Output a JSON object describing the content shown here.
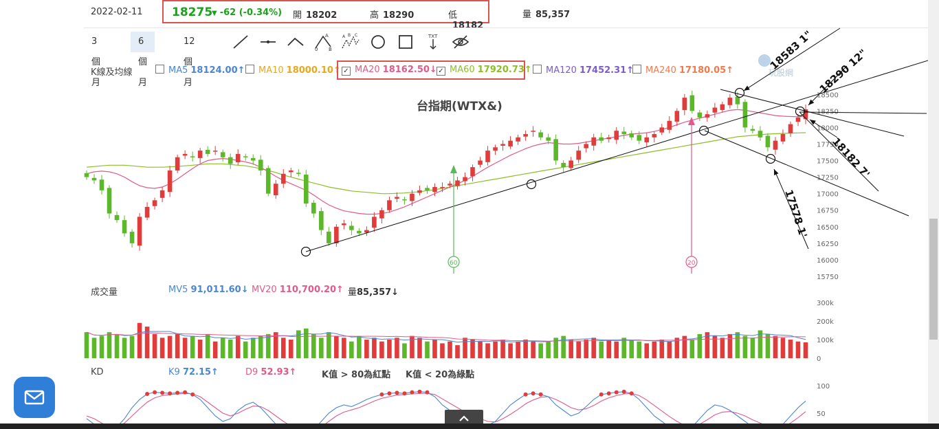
{
  "quote": {
    "date": "2022-02-11",
    "price": "18275",
    "change": "-62 (-0.34%)",
    "open_label": "開",
    "open": "18202",
    "high_label": "高",
    "high": "18290",
    "low_label": "低",
    "low": "18182",
    "volume_label": "量",
    "volume": "85,357"
  },
  "toolbar": {
    "periods": [
      "3 個月",
      "6 個月",
      "12 個月"
    ],
    "active_period": "6 個月",
    "tools": [
      "line-tool-icon",
      "horizontal-line-tool-icon",
      "angle-tool-icon",
      "abc-wave-tool-icon",
      "abcde-wave-tool-icon",
      "circle-tool-icon",
      "rectangle-tool-icon",
      "text-tool-icon",
      "hide-drawings-icon"
    ],
    "text_tool_label": "TXT"
  },
  "ma_legend": {
    "label": "K線及均線",
    "items": [
      {
        "name": "MA5",
        "value": "18124.00↑",
        "color": "#4a86d4",
        "checked": false
      },
      {
        "name": "MA10",
        "value": "18000.10↑",
        "color": "#e8a81c",
        "checked": false
      },
      {
        "name": "MA20",
        "value": "18162.50↓",
        "color": "#e05a8a",
        "checked": true
      },
      {
        "name": "MA60",
        "value": "17920.73↑",
        "color": "#8cbf26",
        "checked": true
      },
      {
        "name": "MA120",
        "value": "17452.31↑",
        "color": "#7b5cc9",
        "checked": false
      },
      {
        "name": "MA240",
        "value": "17180.05↑",
        "color": "#f07a4a",
        "checked": false
      }
    ]
  },
  "colors": {
    "up": "#e03c3c",
    "down": "#5cb82a",
    "ma20": "#e05a8a",
    "ma60": "#8cbf26",
    "accent": "#2f7fd8"
  },
  "watermark": "玩股網",
  "chart_data": [
    {
      "type": "candlestick",
      "title": "台指期(WTX&)",
      "yticks": [
        18500,
        18250,
        18000,
        17750,
        17500,
        17250,
        17000,
        16750,
        16500,
        16250,
        16000,
        15750
      ],
      "ylim": [
        15750,
        18700
      ],
      "closes": [
        17250,
        17200,
        17050,
        16700,
        16600,
        16400,
        16250,
        16650,
        16800,
        16900,
        17050,
        17350,
        17550,
        17600,
        17550,
        17650,
        17600,
        17650,
        17550,
        17450,
        17600,
        17550,
        17500,
        17350,
        17000,
        17150,
        17300,
        17350,
        17300,
        16850,
        16700,
        16450,
        16250,
        16500,
        16550,
        16450,
        16400,
        16450,
        16650,
        16750,
        16900,
        16950,
        16900,
        17000,
        17050,
        17050,
        17100,
        17100,
        17150,
        17200,
        17250,
        17400,
        17500,
        17650,
        17700,
        17750,
        17800,
        17850,
        17900,
        17950,
        17850,
        17800,
        17500,
        17400,
        17500,
        17650,
        17750,
        17850,
        17800,
        17850,
        17950,
        17900,
        17850,
        17800,
        17850,
        17900,
        18000,
        18100,
        18250,
        18450,
        18250,
        18150,
        18200,
        18300,
        18350,
        18450,
        18350,
        18000,
        17950,
        17850,
        17700,
        17800,
        17900,
        18050,
        18150,
        18275
      ],
      "ma20": [
        17300,
        17330,
        17340,
        17330,
        17300,
        17250,
        17180,
        17120,
        17090,
        17080,
        17100,
        17150,
        17220,
        17300,
        17380,
        17450,
        17500,
        17520,
        17530,
        17520,
        17500,
        17480,
        17450,
        17400,
        17330,
        17260,
        17200,
        17150,
        17100,
        17050,
        16980,
        16900,
        16830,
        16780,
        16740,
        16720,
        16700,
        16690,
        16690,
        16700,
        16720,
        16760,
        16800,
        16850,
        16900,
        16950,
        17000,
        17050,
        17100,
        17150,
        17200,
        17260,
        17330,
        17400,
        17460,
        17520,
        17580,
        17630,
        17680,
        17720,
        17750,
        17770,
        17760,
        17750,
        17750,
        17760,
        17780,
        17800,
        17820,
        17840,
        17860,
        17880,
        17900,
        17910,
        17920,
        17940,
        17970,
        18000,
        18040,
        18080,
        18110,
        18140,
        18170,
        18200,
        18230,
        18260,
        18270,
        18260,
        18240,
        18220,
        18200,
        18180,
        18170,
        18165,
        18162,
        18162.5
      ],
      "ma60": [
        17400,
        17410,
        17420,
        17430,
        17430,
        17430,
        17420,
        17410,
        17400,
        17400,
        17400,
        17405,
        17410,
        17420,
        17430,
        17440,
        17450,
        17450,
        17450,
        17440,
        17430,
        17420,
        17400,
        17380,
        17350,
        17320,
        17280,
        17250,
        17220,
        17190,
        17160,
        17130,
        17100,
        17080,
        17060,
        17040,
        17030,
        17020,
        17010,
        17000,
        17000,
        17005,
        17010,
        17020,
        17030,
        17045,
        17060,
        17080,
        17100,
        17120,
        17140,
        17160,
        17180,
        17200,
        17220,
        17240,
        17260,
        17280,
        17300,
        17320,
        17340,
        17360,
        17380,
        17400,
        17420,
        17440,
        17460,
        17480,
        17500,
        17520,
        17540,
        17560,
        17580,
        17600,
        17620,
        17640,
        17660,
        17680,
        17700,
        17720,
        17740,
        17760,
        17780,
        17800,
        17820,
        17840,
        17860,
        17870,
        17880,
        17890,
        17900,
        17905,
        17910,
        17915,
        17918,
        17920.73
      ],
      "annotations": [
        "18583 1\"",
        "18290 12\"",
        "18182 7'",
        "17578 1'"
      ],
      "markers": [
        {
          "label": "60"
        },
        {
          "label": "20"
        }
      ]
    },
    {
      "type": "bar",
      "title": "成交量",
      "yticks": [
        "300k",
        "200k",
        "100k",
        "0"
      ],
      "ylim": [
        0,
        300000
      ],
      "mv5_label": "MV5",
      "mv5": "91,011.60↓",
      "mv20_label": "MV20",
      "mv20": "110,700.20↑",
      "vol_label": "量",
      "vol": "85,357↓",
      "values": [
        140000,
        110000,
        120000,
        140000,
        130000,
        110000,
        120000,
        190000,
        170000,
        130000,
        110000,
        120000,
        130000,
        110000,
        120000,
        100000,
        130000,
        90000,
        110000,
        100000,
        120000,
        90000,
        110000,
        120000,
        130000,
        140000,
        110000,
        100000,
        150000,
        160000,
        130000,
        110000,
        140000,
        120000,
        110000,
        90000,
        120000,
        100000,
        110000,
        90000,
        100000,
        110000,
        80000,
        120000,
        110000,
        90000,
        100000,
        80000,
        90000,
        70000,
        110000,
        100000,
        90000,
        80000,
        90000,
        100000,
        80000,
        90000,
        100000,
        90000,
        80000,
        90000,
        110000,
        120000,
        100000,
        90000,
        100000,
        110000,
        90000,
        100000,
        90000,
        110000,
        100000,
        90000,
        80000,
        90000,
        100000,
        90000,
        110000,
        120000,
        100000,
        130000,
        140000,
        120000,
        110000,
        130000,
        140000,
        120000,
        110000,
        150000,
        130000,
        120000,
        110000,
        100000,
        90000,
        85357
      ]
    },
    {
      "type": "line",
      "title": "KD",
      "yticks": [
        100,
        50
      ],
      "ylim": [
        0,
        100
      ],
      "k_label": "K9",
      "k_value": "72.15↑",
      "d_label": "D9",
      "d_value": "52.93↑",
      "note_red": "K值 > 80為紅點",
      "note_green": "K值 < 20為綠點",
      "k": [
        40,
        30,
        20,
        15,
        25,
        40,
        60,
        75,
        85,
        88,
        87,
        86,
        87,
        88,
        84,
        75,
        60,
        45,
        35,
        40,
        55,
        65,
        70,
        60,
        45,
        30,
        20,
        15,
        12,
        10,
        20,
        35,
        50,
        60,
        65,
        62,
        68,
        75,
        80,
        84,
        86,
        87,
        86,
        88,
        89,
        88,
        80,
        65,
        55,
        45,
        40,
        35,
        30,
        28,
        35,
        50,
        65,
        75,
        84,
        86,
        84,
        80,
        65,
        55,
        45,
        50,
        62,
        75,
        84,
        86,
        88,
        89,
        86,
        75,
        60,
        45,
        35,
        25,
        20,
        18,
        25,
        40,
        55,
        65,
        62,
        55,
        45,
        35,
        25,
        22,
        18,
        20,
        30,
        45,
        60,
        72.15
      ],
      "d": [
        45,
        40,
        32,
        25,
        25,
        32,
        45,
        58,
        70,
        78,
        82,
        84,
        85,
        86,
        85,
        80,
        70,
        60,
        50,
        45,
        50,
        57,
        63,
        62,
        55,
        45,
        35,
        27,
        20,
        15,
        17,
        25,
        35,
        45,
        52,
        56,
        60,
        66,
        72,
        77,
        80,
        83,
        84,
        85,
        86,
        86,
        84,
        76,
        68,
        60,
        52,
        46,
        40,
        35,
        34,
        40,
        48,
        57,
        67,
        74,
        79,
        80,
        75,
        68,
        60,
        56,
        58,
        64,
        72,
        78,
        82,
        85,
        86,
        82,
        74,
        64,
        54,
        44,
        35,
        28,
        26,
        30,
        38,
        47,
        52,
        53,
        50,
        45,
        38,
        32,
        27,
        24,
        25,
        32,
        42,
        52.93
      ]
    }
  ]
}
